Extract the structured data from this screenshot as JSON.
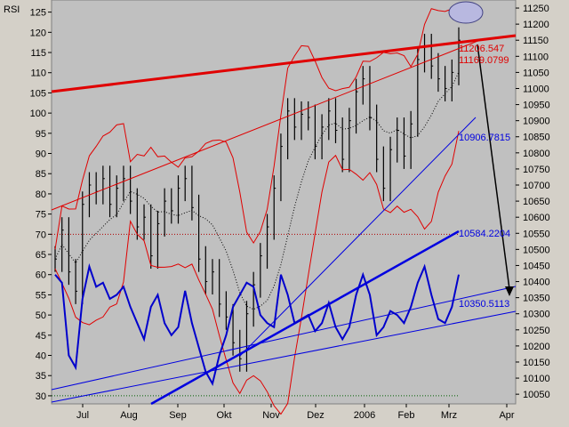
{
  "chart_data": {
    "type": "line",
    "panel_label": "RSI",
    "left_axis": {
      "ticks": [
        125,
        120,
        115,
        110,
        105,
        100,
        95,
        90,
        85,
        80,
        75,
        70,
        65,
        60,
        55,
        50,
        45,
        40,
        35,
        30
      ],
      "range": [
        28,
        128
      ]
    },
    "right_axis": {
      "ticks": [
        11250,
        11200,
        11150,
        11100,
        11050,
        11000,
        10950,
        10900,
        10850,
        10800,
        10750,
        10700,
        10650,
        10600,
        10550,
        10500,
        10450,
        10400,
        10350,
        10300,
        10250,
        10200,
        10150,
        10100,
        10050
      ],
      "range": [
        10020,
        11275
      ]
    },
    "x_axis": {
      "ticks": [
        "Jul",
        "Aug",
        "Sep",
        "Okt",
        "Nov",
        "Dez",
        "2006",
        "Feb",
        "Mrz",
        "Apr"
      ]
    },
    "annotations": [
      {
        "text": "11206.547",
        "color": "#e00000"
      },
      {
        "text": "11169.0799",
        "color": "#e00000"
      },
      {
        "text": "10906.7815",
        "color": "#0000e0"
      },
      {
        "text": "10584.2204",
        "color": "#0000e0"
      },
      {
        "text": "10350.5113",
        "color": "#0000e0"
      }
    ],
    "reference_lines": [
      {
        "name": "RSI 70",
        "value": 70,
        "color": "#b00000",
        "style": "dotted"
      },
      {
        "name": "RSI 30",
        "value": 30,
        "color": "#006000",
        "style": "dotted"
      }
    ],
    "colors": {
      "price_bars": "#000000",
      "rsi": "#0000cc",
      "bollinger": "#e00000",
      "trendlines_red": "#e00000",
      "trendlines_blue": "#0000e0",
      "plot_background": "#c0c0c0"
    },
    "series": [
      {
        "closes": [
          10470,
          10560,
          10430,
          10370,
          10640,
          10700,
          10680,
          10720,
          10640,
          10690,
          10720,
          10650,
          10570,
          10600,
          10480,
          10580,
          10650,
          10620,
          10690,
          10720,
          10630,
          10470,
          10400,
          10430,
          10330,
          10290,
          10210,
          10160,
          10300,
          10390,
          10480,
          10570,
          10690,
          10820,
          10930,
          10880,
          10920,
          10910,
          10820,
          10880,
          10930,
          10870,
          10780,
          10900,
          10990,
          11030,
          10910,
          10780,
          10690,
          10810,
          10870,
          10790,
          10890,
          11090,
          11130,
          11070,
          11030,
          11000,
          11050,
          11150
        ]
      },
      {
        "values": [
          60,
          58,
          40,
          37,
          54,
          62,
          57,
          58,
          54,
          55,
          57,
          52,
          48,
          44,
          52,
          55,
          48,
          45,
          47,
          56,
          48,
          42,
          36,
          33,
          40,
          45,
          52,
          55,
          58,
          57,
          50,
          48,
          47,
          60,
          55,
          48,
          49,
          50,
          46,
          48,
          53,
          47,
          44,
          47,
          55,
          60,
          55,
          45,
          47,
          51,
          50,
          48,
          52,
          58,
          62,
          55,
          49,
          48,
          52,
          60
        ]
      }
    ]
  }
}
